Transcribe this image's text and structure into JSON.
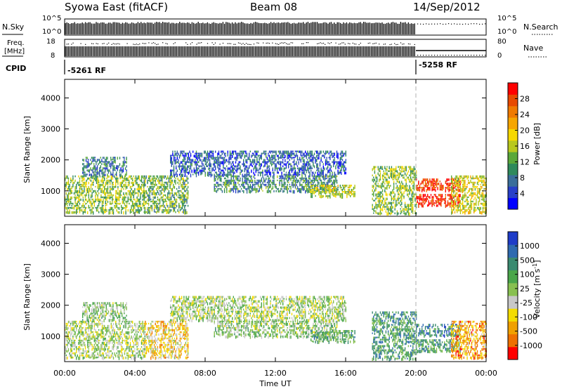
{
  "header": {
    "station": "Syowa East (fitACF)",
    "beam": "Beam 08",
    "date": "14/Sep/2012"
  },
  "status_panels": {
    "nsky_label": "N.Sky",
    "nsky_ticks": [
      "10^5",
      "10^0"
    ],
    "nsearch_label": "N.Search",
    "freq_label_1": "Freq.",
    "freq_label_2": "[MHz]",
    "freq_ticks": [
      "18",
      "8"
    ],
    "nave_ticks": [
      "80",
      "0"
    ],
    "nave_label": "Nave",
    "cpid_label": "CPID",
    "cpid_modes": [
      {
        "label": "-5261 RF",
        "start": "00:00",
        "end": "20:00"
      },
      {
        "label": "-5258 RF",
        "start": "20:00",
        "end": "24:00"
      }
    ],
    "change_time_hours": 20.0
  },
  "chart_data": [
    {
      "type": "heatmap",
      "title": "",
      "xlabel": "Time UT",
      "ylabel": "Slant Range [km]",
      "xlim_hours": [
        0,
        24
      ],
      "ylim_km": [
        180,
        4600
      ],
      "x_ticks": [
        "00:00",
        "04:00",
        "08:00",
        "12:00",
        "16:00",
        "20:00",
        "00:00"
      ],
      "y_ticks": [
        "1000",
        "2000",
        "3000",
        "4000"
      ],
      "colorbar": {
        "label": "Power [dB]",
        "ticks": [
          "4",
          "8",
          "12",
          "16",
          "20",
          "24",
          "28"
        ],
        "colors": [
          "#0000ff",
          "#2840c8",
          "#3a6e9a",
          "#2f8a5c",
          "#5aa83a",
          "#b8c81e",
          "#f6d800",
          "#f6a600",
          "#f07a00",
          "#e84a00",
          "#ff0000"
        ]
      },
      "echo_regions": [
        {
          "t0": 0.0,
          "t1": 4.6,
          "r0": 300,
          "r1": 1500,
          "level": 0.45
        },
        {
          "t0": 1.0,
          "t1": 3.5,
          "r0": 1500,
          "r1": 2100,
          "level": 0.25
        },
        {
          "t0": 4.5,
          "t1": 7.0,
          "r0": 300,
          "r1": 1500,
          "level": 0.4
        },
        {
          "t0": 6.0,
          "t1": 16.0,
          "r0": 1500,
          "r1": 2300,
          "level": 0.2
        },
        {
          "t0": 8.5,
          "t1": 15.5,
          "r0": 1000,
          "r1": 1500,
          "level": 0.3
        },
        {
          "t0": 14.0,
          "t1": 16.5,
          "r0": 800,
          "r1": 1200,
          "level": 0.5
        },
        {
          "t0": 17.5,
          "t1": 20.0,
          "r0": 300,
          "r1": 1800,
          "level": 0.45
        },
        {
          "t0": 20.0,
          "t1": 22.5,
          "r0": 500,
          "r1": 900,
          "level": 0.95
        },
        {
          "t0": 20.0,
          "t1": 22.5,
          "r0": 1000,
          "r1": 1400,
          "level": 0.9
        },
        {
          "t0": 22.0,
          "t1": 24.0,
          "r0": 300,
          "r1": 1500,
          "level": 0.55
        }
      ]
    },
    {
      "type": "heatmap",
      "title": "",
      "xlabel": "Time UT",
      "ylabel": "Slant Range [km]",
      "xlim_hours": [
        0,
        24
      ],
      "ylim_km": [
        180,
        4600
      ],
      "x_ticks": [
        "00:00",
        "04:00",
        "08:00",
        "12:00",
        "16:00",
        "20:00",
        "00:00"
      ],
      "y_ticks": [
        "1000",
        "2000",
        "3000",
        "4000"
      ],
      "colorbar": {
        "label": "Velocity [m s^-1]",
        "ticks": [
          "1000",
          "500",
          "100",
          "25",
          "-25",
          "-100",
          "-500",
          "-1000"
        ],
        "colors": [
          "#1e3cc8",
          "#2e6ab0",
          "#3a8a70",
          "#4aa64a",
          "#88c050",
          "#c8c8c8",
          "#f4dc00",
          "#f0a000",
          "#ee7000",
          "#ff0000"
        ]
      },
      "echo_regions": [
        {
          "t0": 0.0,
          "t1": 4.6,
          "r0": 300,
          "r1": 1500,
          "level": 0.5
        },
        {
          "t0": 1.0,
          "t1": 3.5,
          "r0": 1500,
          "r1": 2100,
          "level": 0.45
        },
        {
          "t0": 4.5,
          "t1": 7.0,
          "r0": 300,
          "r1": 1500,
          "level": 0.65
        },
        {
          "t0": 6.0,
          "t1": 16.0,
          "r0": 1500,
          "r1": 2300,
          "level": 0.5
        },
        {
          "t0": 8.5,
          "t1": 15.5,
          "r0": 1000,
          "r1": 1500,
          "level": 0.45
        },
        {
          "t0": 14.0,
          "t1": 16.5,
          "r0": 800,
          "r1": 1200,
          "level": 0.35
        },
        {
          "t0": 17.5,
          "t1": 20.0,
          "r0": 300,
          "r1": 1800,
          "level": 0.3
        },
        {
          "t0": 20.0,
          "t1": 22.5,
          "r0": 500,
          "r1": 900,
          "level": 0.3
        },
        {
          "t0": 20.0,
          "t1": 22.5,
          "r0": 1000,
          "r1": 1400,
          "level": 0.25
        },
        {
          "t0": 22.0,
          "t1": 24.0,
          "r0": 300,
          "r1": 1500,
          "level": 0.75
        }
      ]
    }
  ]
}
